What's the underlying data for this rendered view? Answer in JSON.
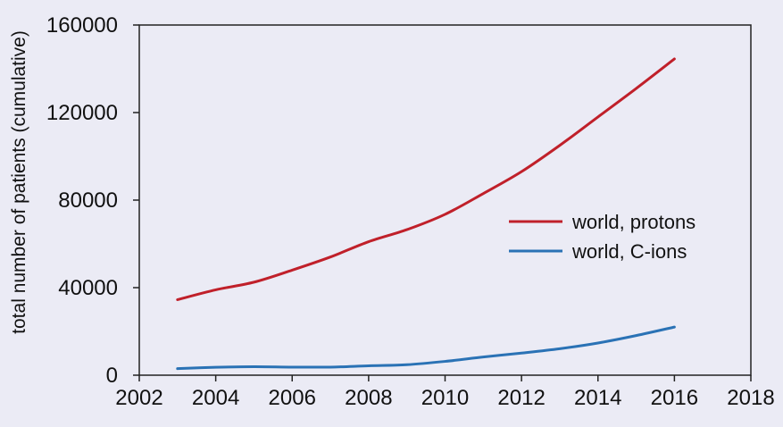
{
  "chart_data": {
    "type": "line",
    "title": "",
    "xlabel": "",
    "ylabel": "total number of patients (cumulative)",
    "xlim": [
      2002,
      2018
    ],
    "ylim": [
      0,
      160000
    ],
    "x_ticks": [
      "2002",
      "2004",
      "2006",
      "2008",
      "2010",
      "2012",
      "2014",
      "2016",
      "2018"
    ],
    "y_ticks": [
      "0",
      "40000",
      "80000",
      "120000",
      "160000"
    ],
    "grid": false,
    "legend_position": "center-right",
    "series": [
      {
        "name": "world, protons",
        "color": "#c0202a",
        "x": [
          2003,
          2004,
          2005,
          2006,
          2007,
          2008,
          2009,
          2010,
          2011,
          2012,
          2013,
          2014,
          2015,
          2016
        ],
        "y": [
          34500,
          39000,
          42500,
          48000,
          54000,
          61000,
          66500,
          73500,
          83000,
          93000,
          105000,
          118000,
          131000,
          144500
        ]
      },
      {
        "name": "world, C-ions",
        "color": "#2a72b5",
        "x": [
          2003,
          2004,
          2005,
          2006,
          2007,
          2008,
          2009,
          2010,
          2011,
          2012,
          2013,
          2014,
          2015,
          2016
        ],
        "y": [
          3000,
          3600,
          3900,
          3700,
          3700,
          4300,
          4800,
          6300,
          8300,
          10100,
          12100,
          14700,
          18100,
          22000
        ]
      }
    ]
  }
}
